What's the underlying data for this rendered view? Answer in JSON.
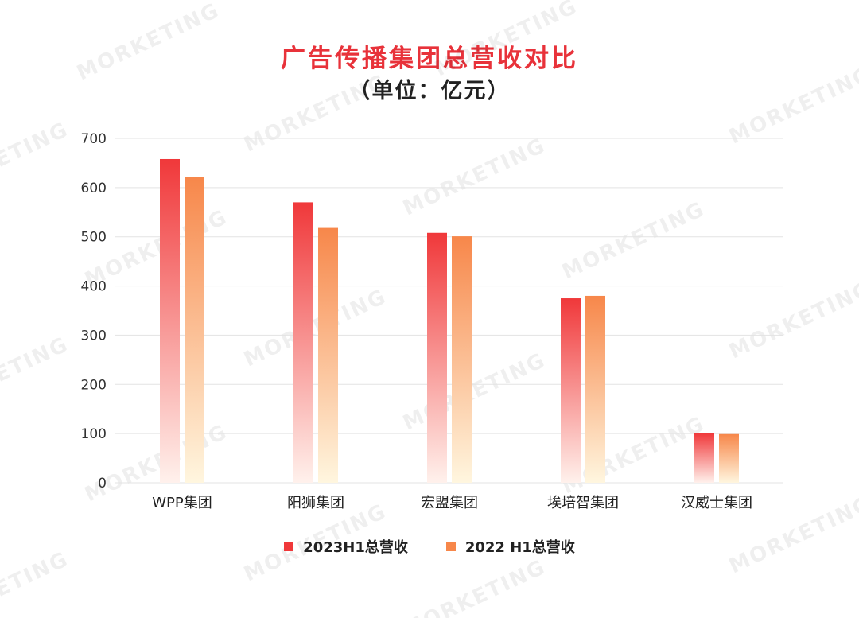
{
  "colors": {
    "series_2023": "#f0383a",
    "series_2022": "#f7874a",
    "title": "#e8323a",
    "grid": "#e3e3e3"
  },
  "watermark_text": "MORKETING",
  "chart_data": {
    "type": "bar",
    "title": "广告传播集团总营收对比",
    "subtitle": "（单位：亿元）",
    "categories": [
      "WPP集团",
      "阳狮集团",
      "宏盟集团",
      "埃培智集团",
      "汉威士集团"
    ],
    "series": [
      {
        "name": "2023H1总营收",
        "values": [
          658,
          570,
          508,
          375,
          101
        ]
      },
      {
        "name": "2022 H1总营收",
        "values": [
          622,
          518,
          501,
          380,
          99
        ]
      }
    ],
    "yticks": [
      0,
      100,
      200,
      300,
      400,
      500,
      600,
      700
    ],
    "ylim": [
      0,
      700
    ],
    "grid": true,
    "legend_position": "bottom-center"
  }
}
